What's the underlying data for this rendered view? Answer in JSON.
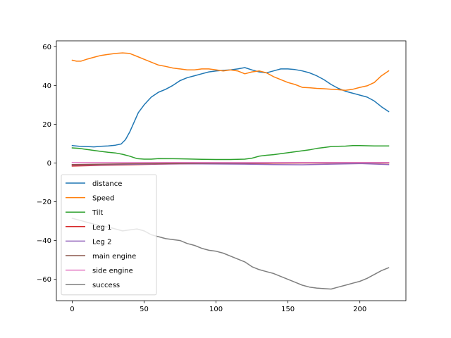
{
  "chart_data": {
    "type": "line",
    "title": "",
    "xlabel": "",
    "ylabel": "",
    "xlim": [
      -11,
      232
    ],
    "ylim": [
      -71,
      63
    ],
    "xticks": [
      0,
      50,
      100,
      150,
      200
    ],
    "yticks": [
      -60,
      -40,
      -20,
      0,
      20,
      40,
      60
    ],
    "xtick_labels": [
      "0",
      "50",
      "100",
      "150",
      "200"
    ],
    "ytick_labels": [
      "−60",
      "−40",
      "−20",
      "0",
      "20",
      "40",
      "60"
    ],
    "grid": false,
    "legend": "lower-left",
    "series": [
      {
        "name": "distance",
        "color": "#1f77b4",
        "points": [
          [
            0,
            9
          ],
          [
            5,
            8.6
          ],
          [
            10,
            8.5
          ],
          [
            15,
            8.3
          ],
          [
            20,
            8.6
          ],
          [
            25,
            8.8
          ],
          [
            30,
            9.2
          ],
          [
            34,
            9.8
          ],
          [
            37,
            12
          ],
          [
            40,
            16
          ],
          [
            43,
            21
          ],
          [
            46,
            26
          ],
          [
            50,
            30
          ],
          [
            55,
            34
          ],
          [
            60,
            36.5
          ],
          [
            65,
            38
          ],
          [
            70,
            40
          ],
          [
            75,
            42.5
          ],
          [
            80,
            44
          ],
          [
            85,
            45
          ],
          [
            90,
            46
          ],
          [
            95,
            47
          ],
          [
            100,
            47.5
          ],
          [
            105,
            47.8
          ],
          [
            110,
            48
          ],
          [
            115,
            48.5
          ],
          [
            120,
            49.2
          ],
          [
            125,
            48
          ],
          [
            130,
            47
          ],
          [
            135,
            46.5
          ],
          [
            140,
            47.5
          ],
          [
            145,
            48.5
          ],
          [
            150,
            48.5
          ],
          [
            155,
            48.2
          ],
          [
            160,
            47.5
          ],
          [
            165,
            46.5
          ],
          [
            170,
            45
          ],
          [
            175,
            43
          ],
          [
            180,
            40.5
          ],
          [
            185,
            38.5
          ],
          [
            190,
            37
          ],
          [
            195,
            36
          ],
          [
            200,
            35
          ],
          [
            205,
            34
          ],
          [
            210,
            32
          ],
          [
            215,
            29
          ],
          [
            220,
            26.5
          ]
        ]
      },
      {
        "name": "Speed",
        "color": "#ff7f0e",
        "points": [
          [
            0,
            53
          ],
          [
            3,
            52.5
          ],
          [
            6,
            52.5
          ],
          [
            10,
            53.5
          ],
          [
            15,
            54.5
          ],
          [
            20,
            55.5
          ],
          [
            25,
            56
          ],
          [
            30,
            56.5
          ],
          [
            35,
            56.8
          ],
          [
            40,
            56.5
          ],
          [
            45,
            55
          ],
          [
            50,
            53.5
          ],
          [
            55,
            52
          ],
          [
            60,
            50.5
          ],
          [
            65,
            49.8
          ],
          [
            70,
            49
          ],
          [
            75,
            48.5
          ],
          [
            80,
            48
          ],
          [
            85,
            48
          ],
          [
            90,
            48.5
          ],
          [
            95,
            48.5
          ],
          [
            100,
            48
          ],
          [
            105,
            47.5
          ],
          [
            110,
            48
          ],
          [
            115,
            47.5
          ],
          [
            120,
            46
          ],
          [
            125,
            47
          ],
          [
            130,
            47.5
          ],
          [
            135,
            46.5
          ],
          [
            140,
            44.5
          ],
          [
            145,
            43
          ],
          [
            150,
            41.5
          ],
          [
            155,
            40.5
          ],
          [
            160,
            39
          ],
          [
            165,
            38.8
          ],
          [
            170,
            38.5
          ],
          [
            175,
            38.3
          ],
          [
            180,
            38
          ],
          [
            185,
            37.8
          ],
          [
            190,
            37.5
          ],
          [
            195,
            38
          ],
          [
            200,
            39
          ],
          [
            205,
            39.8
          ],
          [
            210,
            41.5
          ],
          [
            215,
            45
          ],
          [
            220,
            47.5
          ]
        ]
      },
      {
        "name": "Tilt",
        "color": "#2ca02c",
        "points": [
          [
            0,
            7.8
          ],
          [
            5,
            7.5
          ],
          [
            10,
            7
          ],
          [
            15,
            6.5
          ],
          [
            20,
            6
          ],
          [
            25,
            5.5
          ],
          [
            30,
            5.2
          ],
          [
            35,
            4.5
          ],
          [
            40,
            3.5
          ],
          [
            45,
            2.3
          ],
          [
            50,
            2
          ],
          [
            55,
            2
          ],
          [
            60,
            2.3
          ],
          [
            70,
            2.2
          ],
          [
            80,
            2.1
          ],
          [
            90,
            1.9
          ],
          [
            100,
            1.8
          ],
          [
            110,
            1.8
          ],
          [
            120,
            2
          ],
          [
            125,
            2.5
          ],
          [
            130,
            3.5
          ],
          [
            135,
            4
          ],
          [
            140,
            4.3
          ],
          [
            145,
            4.8
          ],
          [
            150,
            5.3
          ],
          [
            155,
            5.8
          ],
          [
            160,
            6.3
          ],
          [
            165,
            6.8
          ],
          [
            170,
            7.5
          ],
          [
            175,
            8
          ],
          [
            180,
            8.5
          ],
          [
            185,
            8.6
          ],
          [
            190,
            8.7
          ],
          [
            195,
            9
          ],
          [
            200,
            9
          ],
          [
            205,
            8.9
          ],
          [
            210,
            8.8
          ],
          [
            215,
            8.8
          ],
          [
            220,
            8.8
          ]
        ]
      },
      {
        "name": "Leg 1",
        "color": "#d62728",
        "points": [
          [
            0,
            -1.6
          ],
          [
            20,
            -1.2
          ],
          [
            40,
            -0.9
          ],
          [
            60,
            -0.6
          ],
          [
            80,
            -0.4
          ],
          [
            100,
            -0.3
          ],
          [
            120,
            -0.2
          ],
          [
            140,
            -0.1
          ],
          [
            160,
            0
          ],
          [
            180,
            0
          ],
          [
            200,
            0
          ],
          [
            220,
            0
          ]
        ]
      },
      {
        "name": "Leg 2",
        "color": "#9467bd",
        "points": [
          [
            0,
            -1
          ],
          [
            20,
            -0.9
          ],
          [
            40,
            -0.7
          ],
          [
            60,
            -0.5
          ],
          [
            80,
            -0.4
          ],
          [
            100,
            -0.5
          ],
          [
            120,
            -0.6
          ],
          [
            140,
            -0.8
          ],
          [
            160,
            -0.9
          ],
          [
            180,
            -0.6
          ],
          [
            200,
            -0.3
          ],
          [
            220,
            -0.8
          ]
        ]
      },
      {
        "name": "main engine",
        "color": "#8c564b",
        "points": [
          [
            0,
            -0.8
          ],
          [
            40,
            -0.4
          ],
          [
            80,
            -0.2
          ],
          [
            120,
            0
          ],
          [
            160,
            0.1
          ],
          [
            200,
            0.1
          ],
          [
            220,
            0.1
          ]
        ]
      },
      {
        "name": "side engine",
        "color": "#e377c2",
        "points": [
          [
            0,
            0.2
          ],
          [
            40,
            0.2
          ],
          [
            80,
            0.3
          ],
          [
            120,
            0.2
          ],
          [
            160,
            0.3
          ],
          [
            200,
            0.3
          ],
          [
            220,
            0.3
          ]
        ]
      },
      {
        "name": "success",
        "color": "#7f7f7f",
        "points": [
          [
            0,
            -28.5
          ],
          [
            5,
            -29.5
          ],
          [
            10,
            -30.5
          ],
          [
            15,
            -31.5
          ],
          [
            20,
            -32.5
          ],
          [
            25,
            -33
          ],
          [
            30,
            -34
          ],
          [
            35,
            -35
          ],
          [
            40,
            -34.5
          ],
          [
            45,
            -34
          ],
          [
            50,
            -35
          ],
          [
            55,
            -37
          ],
          [
            60,
            -38
          ],
          [
            65,
            -39
          ],
          [
            70,
            -39.5
          ],
          [
            75,
            -40
          ],
          [
            80,
            -41.5
          ],
          [
            85,
            -42.5
          ],
          [
            90,
            -44
          ],
          [
            95,
            -45
          ],
          [
            100,
            -45.5
          ],
          [
            105,
            -46.5
          ],
          [
            110,
            -48
          ],
          [
            115,
            -49.5
          ],
          [
            120,
            -51
          ],
          [
            125,
            -53.5
          ],
          [
            130,
            -55
          ],
          [
            135,
            -56
          ],
          [
            140,
            -57
          ],
          [
            145,
            -58.5
          ],
          [
            150,
            -60
          ],
          [
            155,
            -61.5
          ],
          [
            160,
            -63
          ],
          [
            165,
            -64
          ],
          [
            170,
            -64.5
          ],
          [
            175,
            -64.8
          ],
          [
            180,
            -65
          ],
          [
            185,
            -64
          ],
          [
            190,
            -63
          ],
          [
            195,
            -62
          ],
          [
            200,
            -61
          ],
          [
            205,
            -59.5
          ],
          [
            210,
            -57.5
          ],
          [
            215,
            -55.5
          ],
          [
            220,
            -54
          ]
        ]
      }
    ]
  }
}
